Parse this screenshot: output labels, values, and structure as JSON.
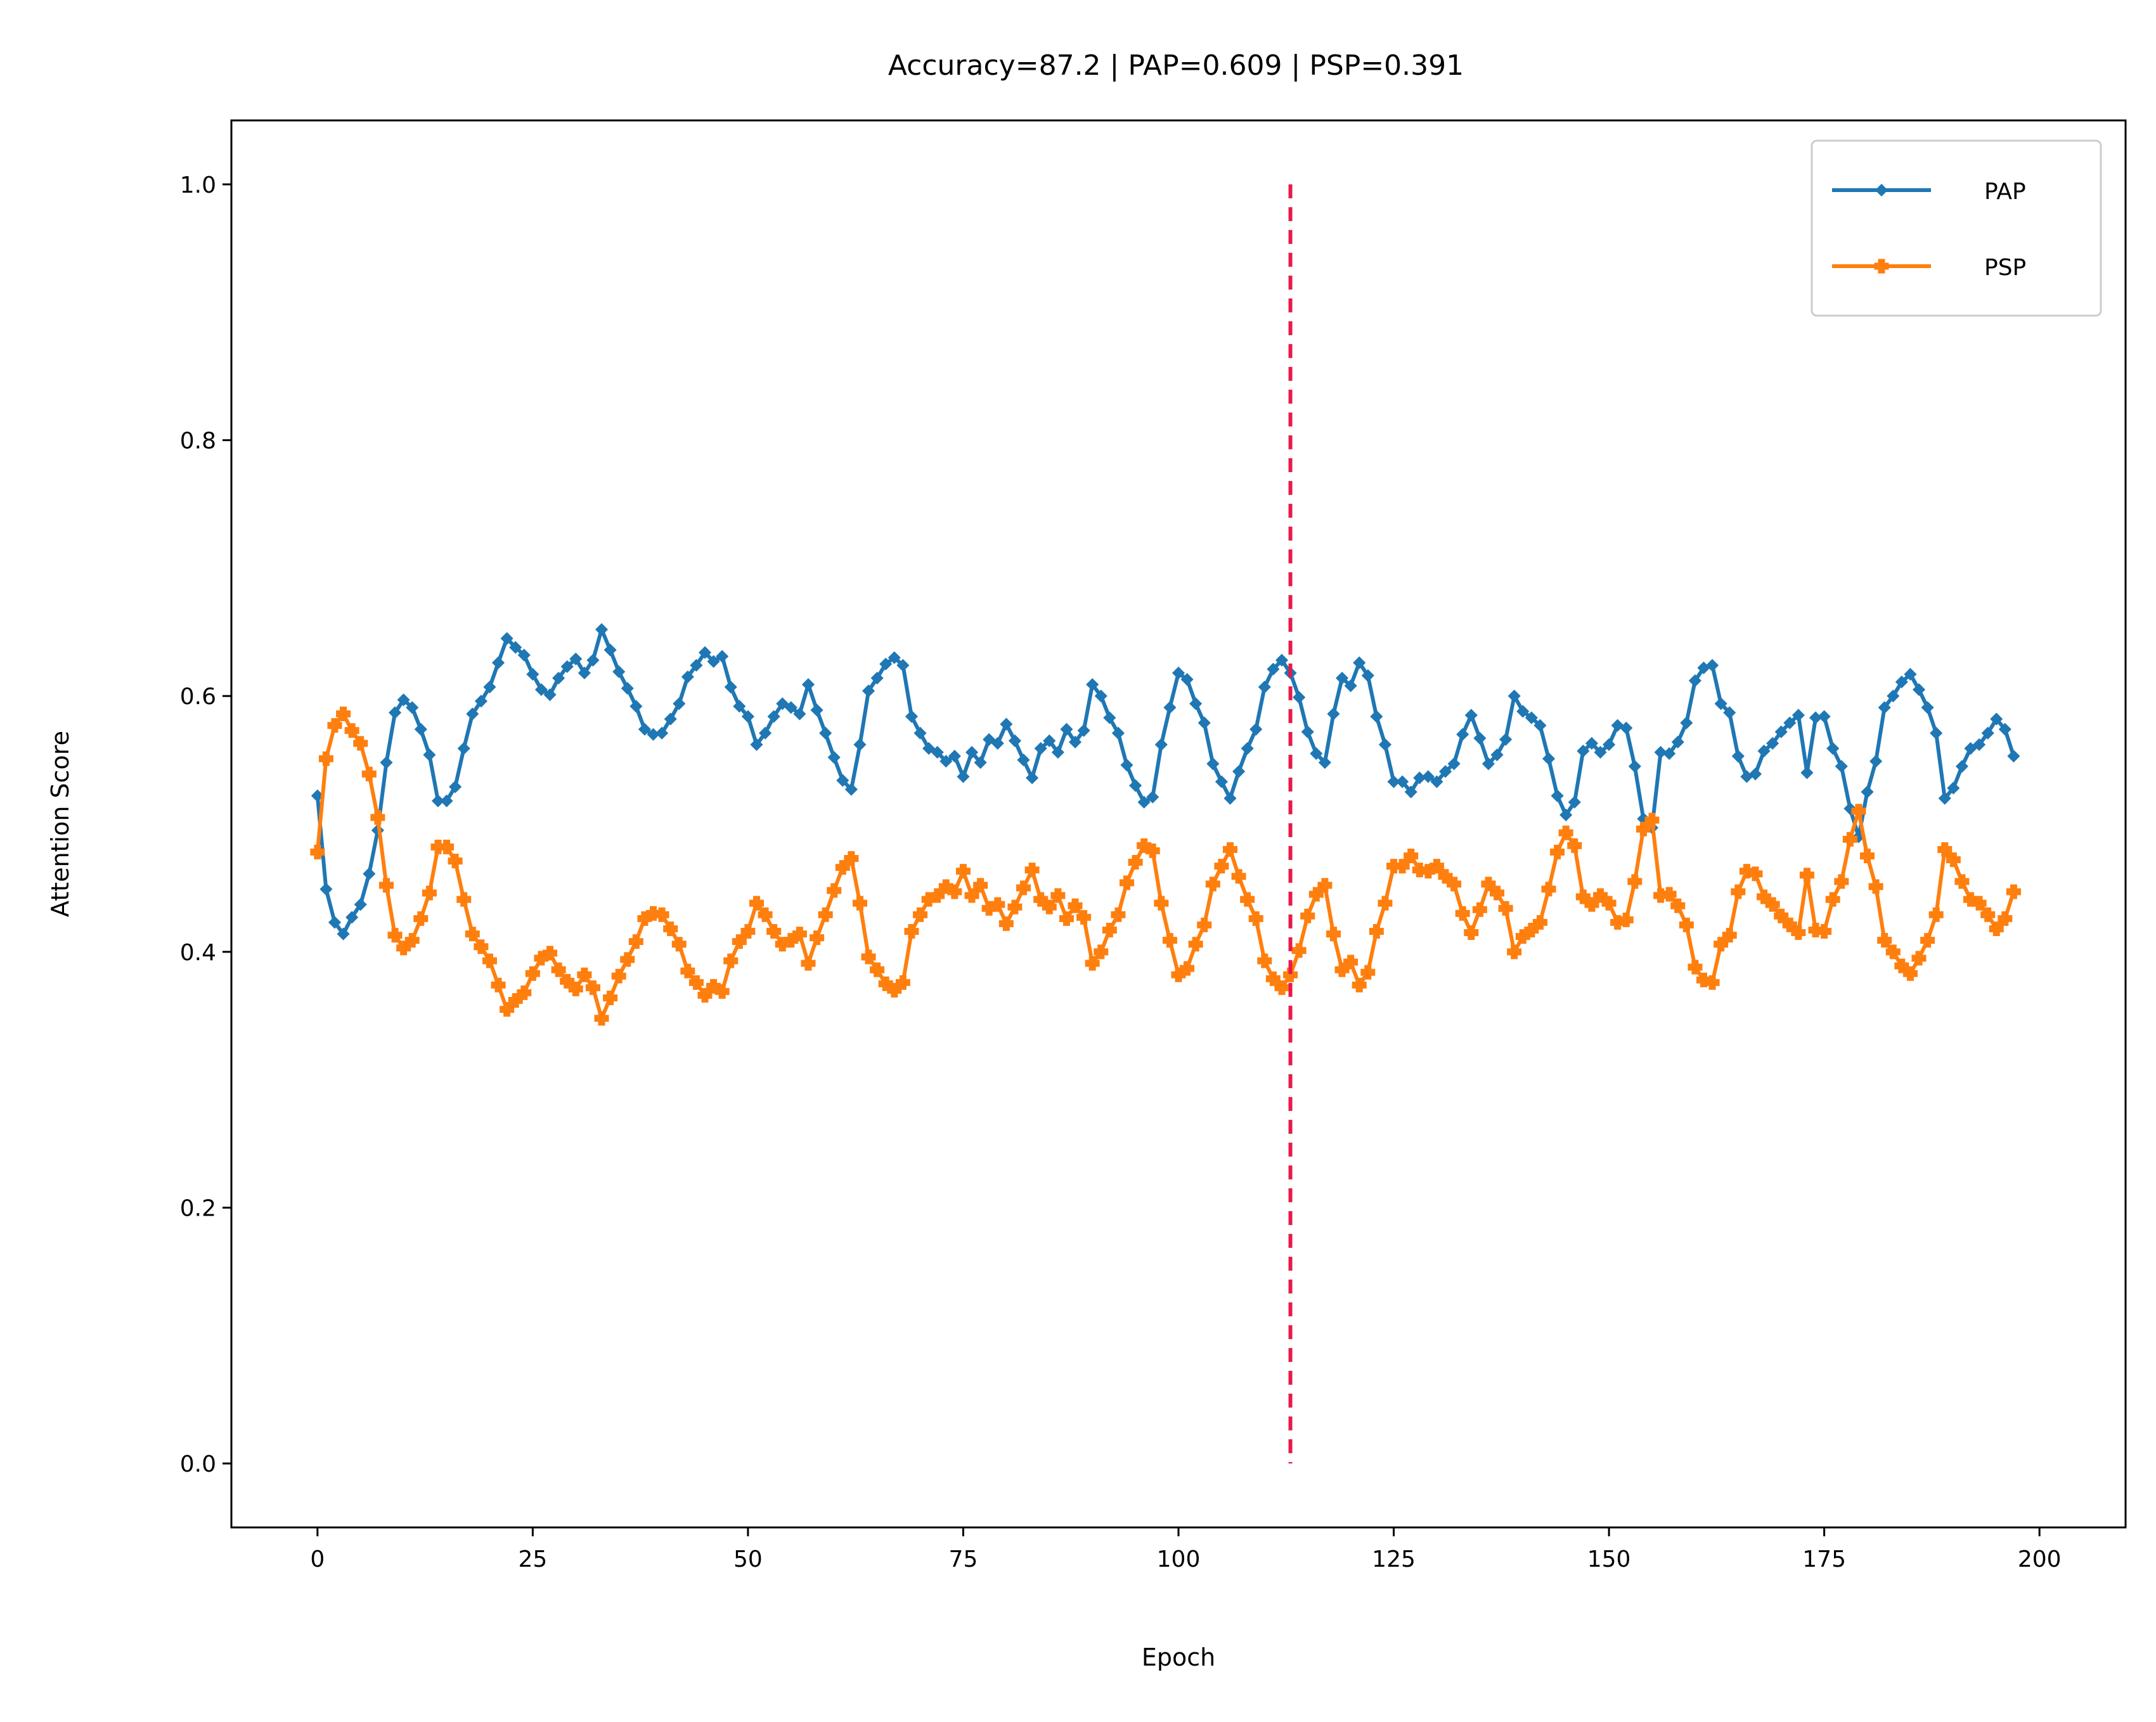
{
  "chart_data": {
    "type": "line",
    "title": "Accuracy=87.2 | PAP=0.609 | PSP=0.391",
    "xlabel": "Epoch",
    "ylabel": "Attention Score",
    "xlim": [
      -10,
      210
    ],
    "ylim": [
      -0.05,
      1.05
    ],
    "xticks": [
      0,
      25,
      50,
      75,
      100,
      125,
      150,
      175,
      200
    ],
    "yticks": [
      0.0,
      0.2,
      0.4,
      0.6,
      0.8,
      1.0
    ],
    "xtick_labels": [
      "0",
      "25",
      "50",
      "75",
      "100",
      "125",
      "150",
      "175",
      "200"
    ],
    "ytick_labels": [
      "0.0",
      "0.2",
      "0.4",
      "0.6",
      "0.8",
      "1.0"
    ],
    "legend_position": "top-right",
    "vline": {
      "x": 113,
      "ymin": 0.0,
      "ymax": 1.0,
      "color": "#e8194b",
      "style": "dashed"
    },
    "series": [
      {
        "name": "PAP",
        "color": "#1f77b4",
        "marker": "diamond",
        "values": [
          0.522,
          0.449,
          0.423,
          0.414,
          0.427,
          0.437,
          0.461,
          0.495,
          0.548,
          0.587,
          0.597,
          0.591,
          0.574,
          0.554,
          0.518,
          0.518,
          0.529,
          0.559,
          0.586,
          0.596,
          0.607,
          0.626,
          0.645,
          0.638,
          0.632,
          0.617,
          0.605,
          0.601,
          0.614,
          0.623,
          0.629,
          0.618,
          0.628,
          0.652,
          0.636,
          0.619,
          0.606,
          0.592,
          0.574,
          0.57,
          0.571,
          0.582,
          0.594,
          0.615,
          0.624,
          0.634,
          0.627,
          0.631,
          0.607,
          0.592,
          0.584,
          0.562,
          0.571,
          0.584,
          0.594,
          0.591,
          0.586,
          0.609,
          0.589,
          0.571,
          0.552,
          0.534,
          0.527,
          0.562,
          0.604,
          0.614,
          0.625,
          0.63,
          0.624,
          0.584,
          0.571,
          0.559,
          0.556,
          0.549,
          0.553,
          0.537,
          0.556,
          0.548,
          0.566,
          0.563,
          0.578,
          0.565,
          0.55,
          0.536,
          0.559,
          0.565,
          0.556,
          0.574,
          0.564,
          0.573,
          0.609,
          0.6,
          0.583,
          0.571,
          0.546,
          0.53,
          0.517,
          0.521,
          0.562,
          0.591,
          0.618,
          0.613,
          0.594,
          0.579,
          0.547,
          0.533,
          0.52,
          0.541,
          0.559,
          0.574,
          0.607,
          0.621,
          0.628,
          0.618,
          0.599,
          0.572,
          0.555,
          0.548,
          0.586,
          0.614,
          0.608,
          0.626,
          0.616,
          0.584,
          0.562,
          0.533,
          0.533,
          0.525,
          0.536,
          0.537,
          0.533,
          0.541,
          0.547,
          0.57,
          0.585,
          0.567,
          0.547,
          0.554,
          0.566,
          0.6,
          0.588,
          0.583,
          0.577,
          0.551,
          0.522,
          0.507,
          0.517,
          0.557,
          0.563,
          0.556,
          0.562,
          0.577,
          0.575,
          0.545,
          0.504,
          0.497,
          0.556,
          0.555,
          0.564,
          0.579,
          0.612,
          0.622,
          0.624,
          0.594,
          0.587,
          0.553,
          0.537,
          0.539,
          0.557,
          0.563,
          0.572,
          0.579,
          0.585,
          0.54,
          0.583,
          0.584,
          0.559,
          0.545,
          0.512,
          0.49,
          0.525,
          0.549,
          0.591,
          0.6,
          0.611,
          0.617,
          0.605,
          0.591,
          0.571,
          0.52,
          0.528,
          0.545,
          0.559,
          0.562,
          0.571,
          0.582,
          0.574,
          0.553
        ]
      },
      {
        "name": "PSP",
        "color": "#ff7f0e",
        "marker": "plus",
        "values": [
          0.478,
          0.551,
          0.577,
          0.586,
          0.573,
          0.563,
          0.539,
          0.505,
          0.452,
          0.413,
          0.403,
          0.409,
          0.426,
          0.446,
          0.482,
          0.482,
          0.471,
          0.441,
          0.414,
          0.404,
          0.393,
          0.374,
          0.355,
          0.362,
          0.368,
          0.383,
          0.395,
          0.399,
          0.386,
          0.377,
          0.371,
          0.382,
          0.372,
          0.348,
          0.364,
          0.381,
          0.394,
          0.408,
          0.426,
          0.43,
          0.429,
          0.418,
          0.406,
          0.385,
          0.376,
          0.366,
          0.373,
          0.369,
          0.393,
          0.408,
          0.416,
          0.438,
          0.429,
          0.416,
          0.406,
          0.409,
          0.414,
          0.391,
          0.411,
          0.429,
          0.448,
          0.466,
          0.473,
          0.438,
          0.396,
          0.386,
          0.375,
          0.37,
          0.376,
          0.416,
          0.429,
          0.441,
          0.444,
          0.451,
          0.447,
          0.463,
          0.444,
          0.452,
          0.434,
          0.437,
          0.422,
          0.435,
          0.45,
          0.464,
          0.441,
          0.435,
          0.444,
          0.426,
          0.436,
          0.427,
          0.391,
          0.4,
          0.417,
          0.429,
          0.454,
          0.47,
          0.483,
          0.479,
          0.438,
          0.409,
          0.382,
          0.387,
          0.406,
          0.421,
          0.453,
          0.467,
          0.48,
          0.459,
          0.441,
          0.426,
          0.393,
          0.379,
          0.372,
          0.382,
          0.401,
          0.428,
          0.445,
          0.452,
          0.414,
          0.386,
          0.392,
          0.374,
          0.384,
          0.416,
          0.438,
          0.467,
          0.467,
          0.475,
          0.464,
          0.463,
          0.467,
          0.459,
          0.453,
          0.43,
          0.415,
          0.433,
          0.453,
          0.446,
          0.434,
          0.4,
          0.412,
          0.417,
          0.423,
          0.449,
          0.478,
          0.493,
          0.483,
          0.443,
          0.437,
          0.444,
          0.438,
          0.423,
          0.425,
          0.455,
          0.496,
          0.503,
          0.444,
          0.445,
          0.436,
          0.421,
          0.388,
          0.378,
          0.376,
          0.406,
          0.413,
          0.447,
          0.463,
          0.461,
          0.443,
          0.437,
          0.428,
          0.421,
          0.415,
          0.46,
          0.417,
          0.416,
          0.441,
          0.455,
          0.488,
          0.51,
          0.475,
          0.451,
          0.409,
          0.4,
          0.389,
          0.383,
          0.395,
          0.409,
          0.429,
          0.48,
          0.472,
          0.455,
          0.441,
          0.438,
          0.429,
          0.418,
          0.426,
          0.447
        ]
      }
    ]
  }
}
